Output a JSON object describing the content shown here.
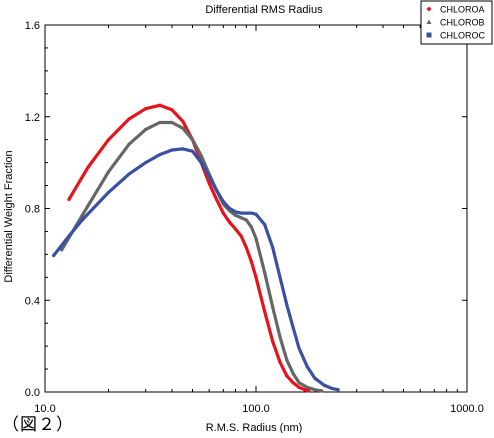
{
  "figure_label": "（図２）",
  "chart_data": {
    "type": "line",
    "title": "Differential RMS Radius",
    "xlabel": "R.M.S. Radius (nm)",
    "ylabel": "Differential Weight Fraction",
    "xscale": "log",
    "xlim": [
      10,
      1000
    ],
    "ylim": [
      0,
      1.6
    ],
    "xticks": [
      10,
      100,
      1000
    ],
    "xtick_labels": [
      "10.0",
      "100.0",
      "1000.0"
    ],
    "yticks": [
      0,
      0.4,
      0.8,
      1.2,
      1.6
    ],
    "ytick_labels": [
      "0.0",
      "0.4",
      "0.8",
      "1.2",
      "1.6"
    ],
    "grid": false,
    "legend_position": "top-right",
    "series": [
      {
        "name": "CHLOROA",
        "color": "#e8121a",
        "marker": "diamond",
        "x": [
          13.0,
          16,
          20,
          25,
          30,
          35,
          40,
          45,
          50,
          55,
          60,
          65,
          70,
          75,
          80,
          85,
          90,
          95,
          100,
          110,
          120,
          130,
          140,
          150,
          160,
          170,
          178
        ],
        "y": [
          0.84,
          0.98,
          1.1,
          1.19,
          1.235,
          1.25,
          1.23,
          1.18,
          1.1,
          1.0,
          0.91,
          0.84,
          0.78,
          0.74,
          0.71,
          0.68,
          0.63,
          0.57,
          0.5,
          0.35,
          0.22,
          0.13,
          0.07,
          0.04,
          0.02,
          0.01,
          0.005
        ]
      },
      {
        "name": "CHLOROB",
        "color": "#666666",
        "marker": "triangle",
        "x": [
          12.0,
          15,
          20,
          25,
          30,
          35,
          40,
          45,
          50,
          55,
          60,
          65,
          70,
          75,
          80,
          85,
          90,
          95,
          100,
          110,
          120,
          130,
          140,
          150,
          160,
          175,
          190,
          205
        ],
        "y": [
          0.62,
          0.77,
          0.96,
          1.08,
          1.145,
          1.175,
          1.175,
          1.15,
          1.1,
          1.03,
          0.95,
          0.88,
          0.82,
          0.79,
          0.77,
          0.76,
          0.75,
          0.72,
          0.67,
          0.52,
          0.37,
          0.24,
          0.14,
          0.08,
          0.04,
          0.02,
          0.01,
          0.005
        ]
      },
      {
        "name": "CHLOROC",
        "color": "#3a50a3",
        "marker": "square",
        "x": [
          11.0,
          13,
          15,
          20,
          25,
          30,
          35,
          40,
          45,
          50,
          55,
          60,
          65,
          70,
          75,
          80,
          85,
          90,
          95,
          100,
          110,
          120,
          130,
          140,
          150,
          160,
          175,
          190,
          210,
          230,
          245
        ],
        "y": [
          0.595,
          0.68,
          0.75,
          0.87,
          0.95,
          1.0,
          1.035,
          1.055,
          1.06,
          1.05,
          1.0,
          0.94,
          0.88,
          0.83,
          0.8,
          0.785,
          0.78,
          0.78,
          0.78,
          0.775,
          0.73,
          0.63,
          0.5,
          0.38,
          0.28,
          0.19,
          0.11,
          0.06,
          0.03,
          0.015,
          0.01
        ]
      }
    ]
  }
}
